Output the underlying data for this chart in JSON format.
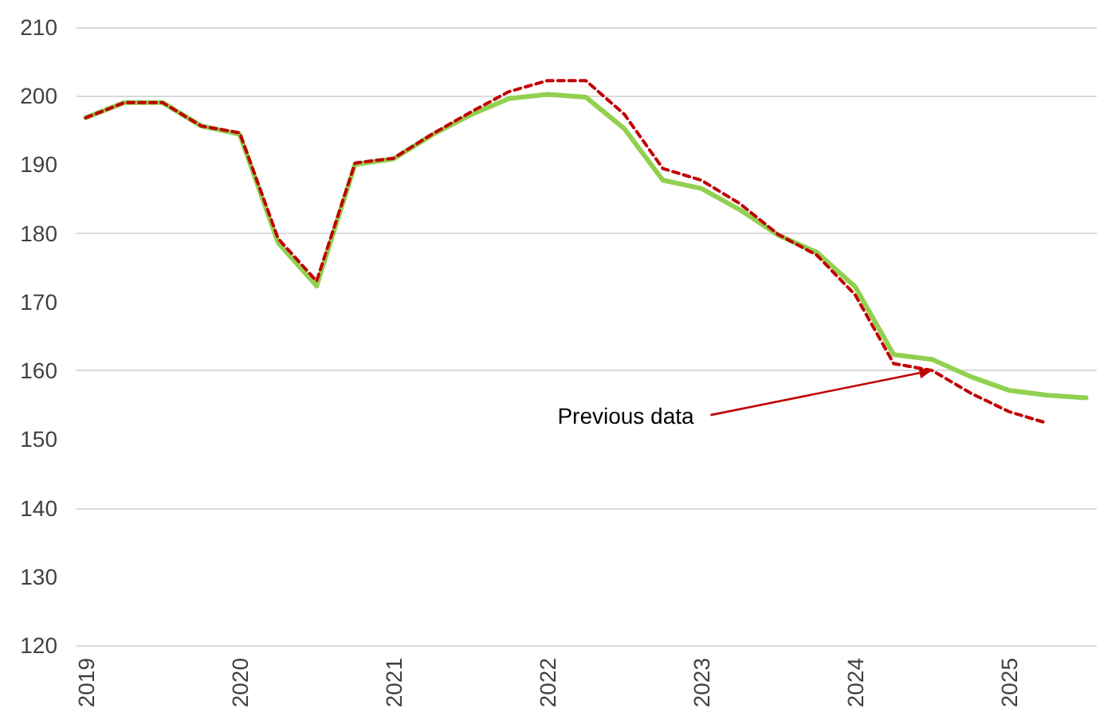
{
  "chart_data": {
    "type": "line",
    "x": [
      2019,
      2019.25,
      2019.5,
      2019.75,
      2020,
      2020.25,
      2020.5,
      2020.75,
      2021,
      2021.25,
      2021.5,
      2021.75,
      2022,
      2022.25,
      2022.5,
      2022.75,
      2023,
      2023.25,
      2023.5,
      2023.75,
      2024,
      2024.25,
      2024.5,
      2024.75,
      2025,
      2025.25,
      2025.5
    ],
    "series": [
      {
        "color": "#92d050",
        "line_style": "solid",
        "values": [
          196.8,
          199,
          199,
          195.6,
          194.4,
          178.6,
          172.3,
          190,
          190.8,
          194.3,
          197.2,
          199.6,
          200.2,
          199.8,
          195.2,
          187.7,
          186.5,
          183.4,
          179.7,
          177.2,
          172.2,
          162.3,
          161.6,
          159.1,
          157.1,
          156.4,
          156
        ]
      },
      {
        "color": "#c00000",
        "line_style": "dashed",
        "values": [
          196.8,
          199,
          199,
          195.6,
          194.6,
          179.2,
          173,
          190.2,
          190.9,
          194.4,
          197.6,
          200.6,
          202.2,
          202.2,
          197.3,
          189.4,
          187.7,
          184.3,
          179.8,
          176.8,
          171,
          161,
          160,
          156.7,
          154,
          152.3,
          null
        ]
      }
    ],
    "annotations": [
      {
        "text": "Previous data",
        "x": 2024.5,
        "y": 160
      }
    ],
    "xlim": [
      2018.94,
      2025.57
    ],
    "xticks": [
      2019,
      2020,
      2021,
      2022,
      2023,
      2024,
      2025
    ],
    "ylim": [
      120,
      210
    ],
    "yticks": [
      120,
      130,
      140,
      150,
      160,
      170,
      180,
      190,
      200,
      210
    ],
    "grid": "y",
    "marker": "none"
  }
}
